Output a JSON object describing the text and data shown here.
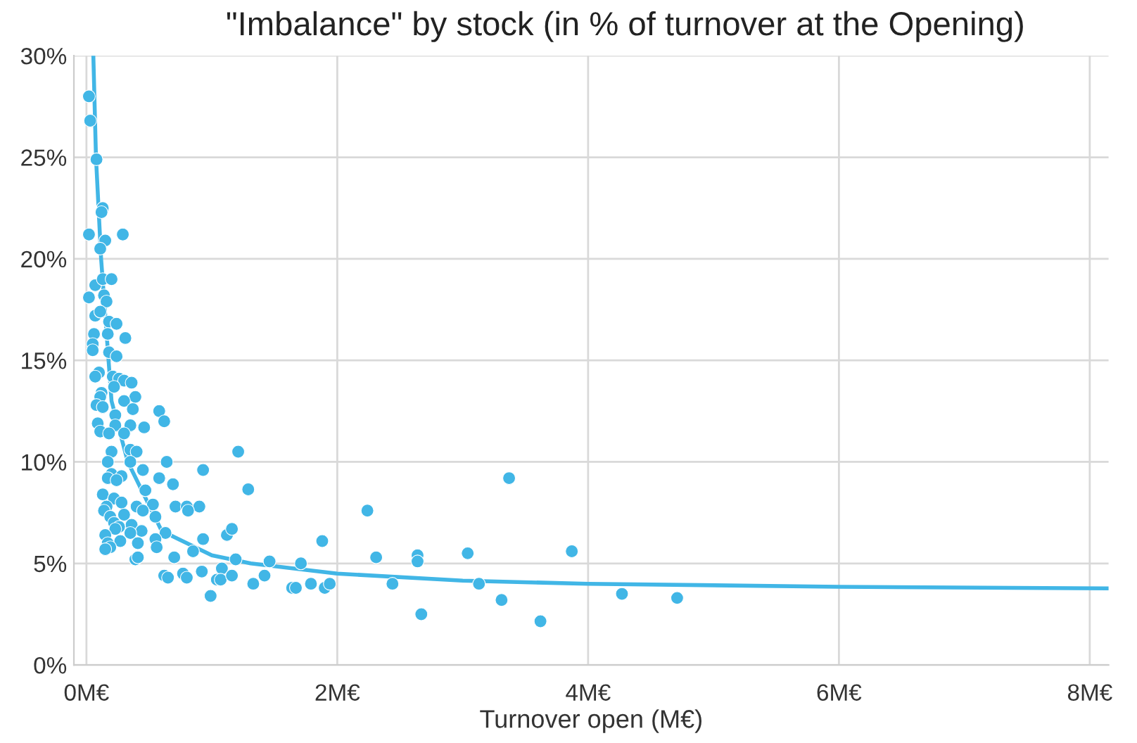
{
  "chart_data": {
    "type": "scatter",
    "title": "\"Imbalance\" by stock (in % of turnover at the Opening)",
    "xlabel": "Turnover open (M€)",
    "xlim": [
      -0.1,
      8.15
    ],
    "xticks": [
      {
        "value": 0,
        "label": "0M€"
      },
      {
        "value": 2,
        "label": "2M€"
      },
      {
        "value": 4,
        "label": "4M€"
      },
      {
        "value": 6,
        "label": "6M€"
      },
      {
        "value": 8,
        "label": "8M€"
      }
    ],
    "ylim": [
      0,
      30
    ],
    "yticks": [
      {
        "value": 0,
        "label": "0%"
      },
      {
        "value": 5,
        "label": "5%"
      },
      {
        "value": 10,
        "label": "10%"
      },
      {
        "value": 15,
        "label": "15%"
      },
      {
        "value": 20,
        "label": "20%"
      },
      {
        "value": 25,
        "label": "25%"
      },
      {
        "value": 30,
        "label": "30%"
      }
    ],
    "grid": true,
    "legend": false,
    "marker": "circle",
    "series": [
      {
        "color": "#41b6e6",
        "x": [
          0.02,
          0.03,
          0.08,
          0.13,
          0.12,
          0.02,
          0.29,
          0.15,
          0.11,
          0.07,
          0.13,
          0.2,
          0.02,
          0.14,
          0.16,
          0.07,
          0.11,
          0.18,
          0.24,
          0.06,
          0.17,
          0.31,
          0.05,
          0.05,
          0.18,
          0.24,
          0.1,
          0.07,
          0.21,
          0.26,
          0.3,
          0.36,
          0.22,
          0.12,
          0.11,
          0.39,
          0.3,
          0.08,
          0.13,
          0.37,
          0.58,
          0.23,
          0.62,
          0.09,
          0.23,
          0.35,
          0.46,
          0.11,
          0.18,
          0.3,
          0.35,
          0.4,
          0.2,
          1.21,
          0.17,
          0.35,
          0.64,
          0.93,
          0.45,
          0.2,
          0.28,
          0.17,
          0.58,
          0.24,
          0.69,
          1.29,
          0.47,
          0.13,
          0.22,
          0.53,
          0.28,
          0.16,
          0.4,
          0.14,
          0.71,
          0.8,
          0.9,
          0.81,
          0.45,
          0.3,
          0.19,
          0.55,
          0.22,
          0.36,
          0.26,
          0.23,
          0.44,
          0.35,
          0.15,
          0.63,
          1.12,
          1.16,
          0.55,
          0.27,
          0.41,
          0.17,
          0.19,
          0.15,
          0.56,
          0.93,
          0.85,
          0.39,
          0.41,
          0.7,
          1.46,
          1.71,
          1.19,
          1.08,
          1.04,
          1.07,
          0.92,
          0.62,
          0.65,
          0.77,
          0.8,
          1.16,
          1.42,
          1.33,
          1.64,
          1.67,
          1.79,
          1.9,
          1.94,
          1.88,
          0.99,
          2.24,
          2.31,
          2.44,
          2.64,
          2.64,
          2.67,
          3.04,
          3.13,
          3.31,
          3.37,
          3.62,
          3.87,
          4.27,
          4.71
        ],
        "values": [
          28.0,
          26.8,
          24.9,
          22.5,
          22.3,
          21.2,
          21.2,
          20.9,
          20.5,
          18.7,
          19.0,
          19.0,
          18.1,
          18.2,
          17.9,
          17.2,
          17.4,
          16.9,
          16.8,
          16.3,
          16.3,
          16.1,
          15.8,
          15.5,
          15.4,
          15.2,
          14.4,
          14.2,
          14.2,
          14.1,
          14.0,
          13.9,
          13.7,
          13.4,
          13.2,
          13.2,
          13.0,
          12.8,
          12.7,
          12.6,
          12.5,
          12.3,
          12.0,
          11.9,
          11.8,
          11.8,
          11.7,
          11.5,
          11.4,
          11.4,
          10.6,
          10.5,
          10.5,
          10.5,
          10.0,
          10.0,
          10.0,
          9.6,
          9.6,
          9.4,
          9.3,
          9.2,
          9.2,
          9.1,
          8.9,
          8.65,
          8.6,
          8.4,
          8.2,
          7.9,
          8.0,
          7.8,
          7.8,
          7.6,
          7.8,
          7.8,
          7.8,
          7.6,
          7.6,
          7.4,
          7.3,
          7.3,
          7.0,
          6.9,
          6.8,
          6.7,
          6.6,
          6.5,
          6.4,
          6.5,
          6.4,
          6.7,
          6.2,
          6.1,
          6.0,
          6.0,
          5.8,
          5.7,
          5.8,
          6.2,
          5.6,
          5.2,
          5.3,
          5.3,
          5.1,
          5.0,
          5.2,
          4.75,
          4.2,
          4.2,
          4.6,
          4.4,
          4.3,
          4.5,
          4.3,
          4.4,
          4.4,
          4.0,
          3.8,
          3.8,
          4.0,
          3.8,
          4.0,
          6.1,
          3.4,
          7.6,
          5.3,
          4.0,
          5.4,
          5.1,
          2.5,
          5.5,
          4.0,
          3.2,
          9.2,
          2.15,
          5.6,
          3.5,
          3.3
        ]
      },
      {
        "type": "line",
        "color": "#41b6e6",
        "marker": "none",
        "line_style": "solid",
        "x": [
          0.055,
          0.076,
          0.117,
          0.2,
          0.33,
          0.6,
          1.0,
          1.31,
          2,
          3,
          4,
          6,
          8.15
        ],
        "values": [
          30,
          25,
          20,
          13,
          10,
          6.6,
          5.4,
          5.0,
          4.5,
          4.15,
          4.0,
          3.85,
          3.77
        ]
      }
    ]
  }
}
